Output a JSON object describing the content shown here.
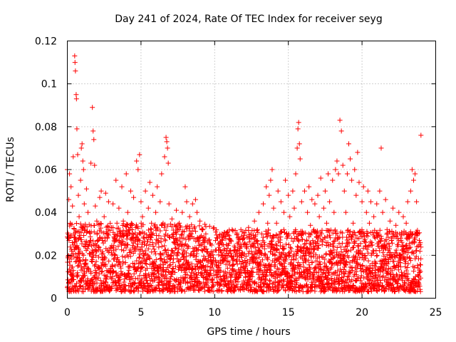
{
  "chart_data": {
    "type": "scatter",
    "title": "Day 241 of 2024, Rate Of TEC Index for receiver seyg",
    "xlabel": "GPS time / hours",
    "ylabel": "ROTI / TECUs",
    "xlim": [
      0,
      25
    ],
    "ylim": [
      0,
      0.12
    ],
    "xticks": [
      0,
      5,
      10,
      15,
      20,
      25
    ],
    "xtick_labels": [
      "0",
      "5",
      "10",
      "15",
      "20",
      "25"
    ],
    "yticks": [
      0,
      0.02,
      0.04,
      0.06,
      0.08,
      0.1,
      0.12
    ],
    "ytick_labels": [
      "0",
      "0.02",
      "0.04",
      "0.06",
      "0.08",
      "0.1",
      "0.12"
    ],
    "grid": true,
    "marker": "plus",
    "color": "#ff0000",
    "series": [
      {
        "name": "ROTI",
        "points": [
          [
            0.0,
            0.06
          ],
          [
            0.05,
            0.028
          ],
          [
            0.1,
            0.007
          ],
          [
            0.1,
            0.046
          ],
          [
            0.15,
            0.058
          ],
          [
            0.2,
            0.012
          ],
          [
            0.2,
            0.035
          ],
          [
            0.25,
            0.052
          ],
          [
            0.3,
            0.02
          ],
          [
            0.3,
            0.004
          ],
          [
            0.35,
            0.043
          ],
          [
            0.4,
            0.066
          ],
          [
            0.45,
            0.03
          ],
          [
            0.5,
            0.113
          ],
          [
            0.52,
            0.11
          ],
          [
            0.55,
            0.106
          ],
          [
            0.6,
            0.095
          ],
          [
            0.62,
            0.093
          ],
          [
            0.65,
            0.079
          ],
          [
            0.7,
            0.067
          ],
          [
            0.7,
            0.015
          ],
          [
            0.75,
            0.048
          ],
          [
            0.8,
            0.038
          ],
          [
            0.85,
            0.022
          ],
          [
            0.9,
            0.055
          ],
          [
            0.95,
            0.07
          ],
          [
            1.0,
            0.072
          ],
          [
            1.05,
            0.064
          ],
          [
            1.1,
            0.06
          ],
          [
            1.1,
            0.01
          ],
          [
            1.15,
            0.044
          ],
          [
            1.2,
            0.032
          ],
          [
            1.25,
            0.018
          ],
          [
            1.3,
            0.051
          ],
          [
            1.4,
            0.04
          ],
          [
            1.5,
            0.026
          ],
          [
            1.6,
            0.063
          ],
          [
            1.7,
            0.089
          ],
          [
            1.75,
            0.078
          ],
          [
            1.8,
            0.074
          ],
          [
            1.85,
            0.062
          ],
          [
            1.9,
            0.043
          ],
          [
            1.9,
            0.013
          ],
          [
            2.0,
            0.036
          ],
          [
            2.1,
            0.024
          ],
          [
            2.2,
            0.047
          ],
          [
            2.3,
            0.05
          ],
          [
            2.4,
            0.016
          ],
          [
            2.5,
            0.038
          ],
          [
            2.6,
            0.049
          ],
          [
            2.7,
            0.028
          ],
          [
            2.8,
            0.045
          ],
          [
            2.9,
            0.012
          ],
          [
            3.0,
            0.033
          ],
          [
            3.1,
            0.044
          ],
          [
            3.2,
            0.02
          ],
          [
            3.3,
            0.055
          ],
          [
            3.4,
            0.03
          ],
          [
            3.5,
            0.042
          ],
          [
            3.6,
            0.015
          ],
          [
            3.7,
            0.052
          ],
          [
            3.8,
            0.036
          ],
          [
            3.9,
            0.025
          ],
          [
            4.0,
            0.058
          ],
          [
            4.1,
            0.04
          ],
          [
            4.2,
            0.01
          ],
          [
            4.3,
            0.05
          ],
          [
            4.4,
            0.032
          ],
          [
            4.5,
            0.047
          ],
          [
            4.6,
            0.022
          ],
          [
            4.7,
            0.064
          ],
          [
            4.8,
            0.06
          ],
          [
            4.9,
            0.067
          ],
          [
            5.0,
            0.045
          ],
          [
            5.0,
            0.008
          ],
          [
            5.1,
            0.038
          ],
          [
            5.2,
            0.028
          ],
          [
            5.3,
            0.05
          ],
          [
            5.4,
            0.018
          ],
          [
            5.5,
            0.042
          ],
          [
            5.6,
            0.054
          ],
          [
            5.7,
            0.032
          ],
          [
            5.8,
            0.048
          ],
          [
            5.9,
            0.014
          ],
          [
            6.0,
            0.04
          ],
          [
            6.1,
            0.052
          ],
          [
            6.2,
            0.026
          ],
          [
            6.3,
            0.045
          ],
          [
            6.4,
            0.058
          ],
          [
            6.5,
            0.035
          ],
          [
            6.6,
            0.066
          ],
          [
            6.7,
            0.075
          ],
          [
            6.75,
            0.073
          ],
          [
            6.8,
            0.07
          ],
          [
            6.85,
            0.063
          ],
          [
            6.9,
            0.044
          ],
          [
            7.0,
            0.02
          ],
          [
            7.1,
            0.037
          ],
          [
            7.2,
            0.03
          ],
          [
            7.3,
            0.012
          ],
          [
            7.4,
            0.041
          ],
          [
            7.5,
            0.025
          ],
          [
            7.6,
            0.035
          ],
          [
            7.7,
            0.018
          ],
          [
            7.8,
            0.04
          ],
          [
            7.9,
            0.028
          ],
          [
            8.0,
            0.052
          ],
          [
            8.1,
            0.045
          ],
          [
            8.2,
            0.015
          ],
          [
            8.3,
            0.038
          ],
          [
            8.4,
            0.03
          ],
          [
            8.5,
            0.044
          ],
          [
            8.6,
            0.022
          ],
          [
            8.7,
            0.046
          ],
          [
            8.8,
            0.04
          ],
          [
            8.9,
            0.012
          ],
          [
            9.0,
            0.036
          ],
          [
            9.1,
            0.025
          ],
          [
            9.2,
            0.032
          ],
          [
            9.3,
            0.018
          ],
          [
            9.4,
            0.03
          ],
          [
            9.5,
            0.01
          ],
          [
            9.6,
            0.027
          ],
          [
            9.7,
            0.02
          ],
          [
            9.8,
            0.008
          ],
          [
            10.1,
            0.015
          ],
          [
            10.2,
            0.028
          ],
          [
            10.3,
            0.01
          ],
          [
            10.4,
            0.022
          ],
          [
            10.5,
            0.03
          ],
          [
            10.6,
            0.018
          ],
          [
            10.7,
            0.008
          ],
          [
            10.8,
            0.025
          ],
          [
            10.9,
            0.02
          ],
          [
            11.0,
            0.012
          ],
          [
            11.1,
            0.027
          ],
          [
            11.2,
            0.015
          ],
          [
            11.3,
            0.022
          ],
          [
            11.4,
            0.008
          ],
          [
            11.5,
            0.018
          ],
          [
            11.6,
            0.028
          ],
          [
            11.7,
            0.012
          ],
          [
            11.8,
            0.024
          ],
          [
            11.9,
            0.017
          ],
          [
            12.0,
            0.03
          ],
          [
            12.1,
            0.01
          ],
          [
            12.2,
            0.025
          ],
          [
            12.3,
            0.033
          ],
          [
            12.4,
            0.018
          ],
          [
            12.5,
            0.028
          ],
          [
            12.6,
            0.012
          ],
          [
            12.7,
            0.036
          ],
          [
            12.8,
            0.022
          ],
          [
            12.9,
            0.032
          ],
          [
            13.0,
            0.04
          ],
          [
            13.1,
            0.015
          ],
          [
            13.2,
            0.03
          ],
          [
            13.3,
            0.044
          ],
          [
            13.4,
            0.025
          ],
          [
            13.5,
            0.052
          ],
          [
            13.6,
            0.035
          ],
          [
            13.7,
            0.048
          ],
          [
            13.8,
            0.055
          ],
          [
            13.9,
            0.06
          ],
          [
            14.0,
            0.042
          ],
          [
            14.1,
            0.02
          ],
          [
            14.2,
            0.035
          ],
          [
            14.3,
            0.05
          ],
          [
            14.4,
            0.03
          ],
          [
            14.5,
            0.045
          ],
          [
            14.6,
            0.015
          ],
          [
            14.7,
            0.04
          ],
          [
            14.8,
            0.055
          ],
          [
            14.9,
            0.028
          ],
          [
            15.0,
            0.048
          ],
          [
            15.1,
            0.038
          ],
          [
            15.2,
            0.022
          ],
          [
            15.3,
            0.05
          ],
          [
            15.4,
            0.042
          ],
          [
            15.5,
            0.058
          ],
          [
            15.6,
            0.07
          ],
          [
            15.65,
            0.079
          ],
          [
            15.7,
            0.082
          ],
          [
            15.75,
            0.072
          ],
          [
            15.8,
            0.065
          ],
          [
            15.9,
            0.045
          ],
          [
            16.0,
            0.03
          ],
          [
            16.1,
            0.05
          ],
          [
            16.2,
            0.02
          ],
          [
            16.3,
            0.04
          ],
          [
            16.4,
            0.052
          ],
          [
            16.5,
            0.034
          ],
          [
            16.6,
            0.046
          ],
          [
            16.7,
            0.012
          ],
          [
            16.8,
            0.044
          ],
          [
            16.9,
            0.03
          ],
          [
            17.0,
            0.048
          ],
          [
            17.1,
            0.038
          ],
          [
            17.2,
            0.056
          ],
          [
            17.3,
            0.025
          ],
          [
            17.4,
            0.042
          ],
          [
            17.5,
            0.05
          ],
          [
            17.6,
            0.035
          ],
          [
            17.7,
            0.058
          ],
          [
            17.8,
            0.045
          ],
          [
            17.9,
            0.018
          ],
          [
            18.0,
            0.055
          ],
          [
            18.1,
            0.04
          ],
          [
            18.2,
            0.06
          ],
          [
            18.3,
            0.064
          ],
          [
            18.4,
            0.058
          ],
          [
            18.5,
            0.083
          ],
          [
            18.6,
            0.078
          ],
          [
            18.7,
            0.062
          ],
          [
            18.8,
            0.05
          ],
          [
            18.9,
            0.04
          ],
          [
            19.0,
            0.058
          ],
          [
            19.1,
            0.072
          ],
          [
            19.2,
            0.065
          ],
          [
            19.3,
            0.055
          ],
          [
            19.4,
            0.035
          ],
          [
            19.5,
            0.06
          ],
          [
            19.6,
            0.048
          ],
          [
            19.7,
            0.068
          ],
          [
            19.8,
            0.054
          ],
          [
            19.9,
            0.03
          ],
          [
            20.0,
            0.045
          ],
          [
            20.1,
            0.052
          ],
          [
            20.2,
            0.02
          ],
          [
            20.3,
            0.04
          ],
          [
            20.4,
            0.05
          ],
          [
            20.5,
            0.035
          ],
          [
            20.6,
            0.045
          ],
          [
            20.7,
            0.012
          ],
          [
            20.8,
            0.038
          ],
          [
            20.9,
            0.028
          ],
          [
            21.0,
            0.044
          ],
          [
            21.1,
            0.03
          ],
          [
            21.2,
            0.05
          ],
          [
            21.3,
            0.07
          ],
          [
            21.4,
            0.04
          ],
          [
            21.5,
            0.025
          ],
          [
            21.6,
            0.046
          ],
          [
            21.7,
            0.032
          ],
          [
            21.8,
            0.018
          ],
          [
            21.9,
            0.036
          ],
          [
            22.0,
            0.028
          ],
          [
            22.1,
            0.042
          ],
          [
            22.2,
            0.015
          ],
          [
            22.3,
            0.034
          ],
          [
            22.4,
            0.025
          ],
          [
            22.5,
            0.04
          ],
          [
            22.6,
            0.02
          ],
          [
            22.7,
            0.03
          ],
          [
            22.8,
            0.038
          ],
          [
            22.9,
            0.022
          ],
          [
            23.0,
            0.035
          ],
          [
            23.1,
            0.045
          ],
          [
            23.2,
            0.028
          ],
          [
            23.3,
            0.05
          ],
          [
            23.4,
            0.06
          ],
          [
            23.5,
            0.055
          ],
          [
            23.6,
            0.058
          ],
          [
            23.7,
            0.045
          ],
          [
            23.8,
            0.03
          ],
          [
            23.9,
            0.012
          ],
          [
            24.0,
            0.076
          ]
        ]
      }
    ],
    "dense_band": {
      "description_free_note": "",
      "segments": [
        {
          "x_from": 0.0,
          "x_to": 9.95,
          "y_low": 0.003,
          "y_mid": 0.018,
          "y_high": 0.035
        },
        {
          "x_from": 10.05,
          "x_to": 24.0,
          "y_low": 0.003,
          "y_mid": 0.016,
          "y_high": 0.032
        }
      ]
    }
  }
}
